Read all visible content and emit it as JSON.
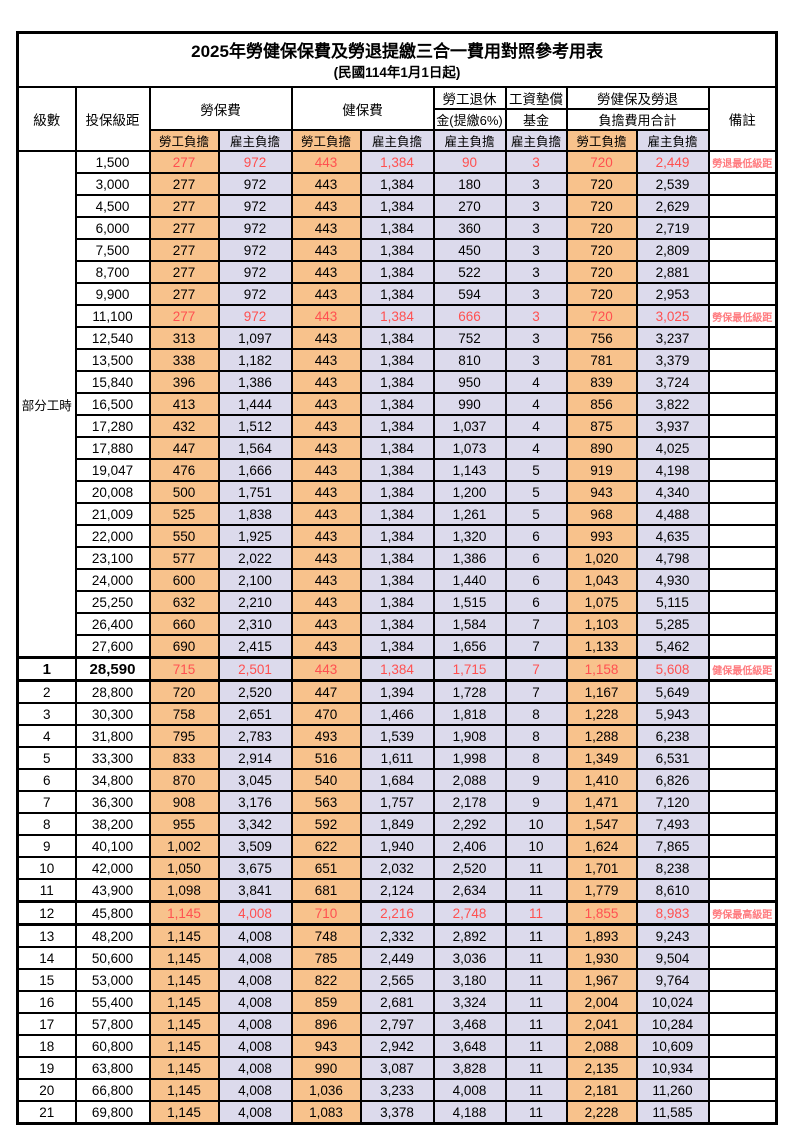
{
  "title": "2025年勞健保保費及勞退提繳三合一費用對照參考用表",
  "subtitle": "(民國114年1月1日起)",
  "header": {
    "level": "級數",
    "bracket": "投保級距",
    "labor_insurance": "勞保費",
    "health_insurance": "健保費",
    "pension_line1": "勞工退休",
    "pension_line2": "金(提繳6%)",
    "wage_fund_line1": "工資墊償",
    "wage_fund_line2": "基金",
    "total_line1": "勞健保及勞退",
    "total_line2": "負擔費用合計",
    "remark": "備註",
    "worker_share": "勞工負擔",
    "employer_share": "雇主負擔"
  },
  "part_time": {
    "label": "部分工時",
    "rowspan": 23
  },
  "colors": {
    "worker_bg": "#F8C28C",
    "employer_bg": "#DCDAEC",
    "red_value": "#FF5050",
    "remark_red": "#FF7C80",
    "border": "#000000"
  },
  "rows": [
    {
      "level": "",
      "bracket": "1,500",
      "v": [
        "277",
        "972",
        "443",
        "1,384",
        "90",
        "3",
        "720",
        "2,449"
      ],
      "remark": "勞退最低級距",
      "red": true,
      "thick": false,
      "em": false
    },
    {
      "level": "",
      "bracket": "3,000",
      "v": [
        "277",
        "972",
        "443",
        "1,384",
        "180",
        "3",
        "720",
        "2,539"
      ],
      "remark": "",
      "red": false,
      "thick": false,
      "em": false
    },
    {
      "level": "",
      "bracket": "4,500",
      "v": [
        "277",
        "972",
        "443",
        "1,384",
        "270",
        "3",
        "720",
        "2,629"
      ],
      "remark": "",
      "red": false,
      "thick": false,
      "em": false
    },
    {
      "level": "",
      "bracket": "6,000",
      "v": [
        "277",
        "972",
        "443",
        "1,384",
        "360",
        "3",
        "720",
        "2,719"
      ],
      "remark": "",
      "red": false,
      "thick": false,
      "em": false
    },
    {
      "level": "",
      "bracket": "7,500",
      "v": [
        "277",
        "972",
        "443",
        "1,384",
        "450",
        "3",
        "720",
        "2,809"
      ],
      "remark": "",
      "red": false,
      "thick": false,
      "em": false
    },
    {
      "level": "",
      "bracket": "8,700",
      "v": [
        "277",
        "972",
        "443",
        "1,384",
        "522",
        "3",
        "720",
        "2,881"
      ],
      "remark": "",
      "red": false,
      "thick": false,
      "em": false
    },
    {
      "level": "",
      "bracket": "9,900",
      "v": [
        "277",
        "972",
        "443",
        "1,384",
        "594",
        "3",
        "720",
        "2,953"
      ],
      "remark": "",
      "red": false,
      "thick": false,
      "em": false
    },
    {
      "level": "",
      "bracket": "11,100",
      "v": [
        "277",
        "972",
        "443",
        "1,384",
        "666",
        "3",
        "720",
        "3,025"
      ],
      "remark": "勞保最低級距",
      "red": true,
      "thick": false,
      "em": false
    },
    {
      "level": "",
      "bracket": "12,540",
      "v": [
        "313",
        "1,097",
        "443",
        "1,384",
        "752",
        "3",
        "756",
        "3,237"
      ],
      "remark": "",
      "red": false,
      "thick": false,
      "em": false
    },
    {
      "level": "",
      "bracket": "13,500",
      "v": [
        "338",
        "1,182",
        "443",
        "1,384",
        "810",
        "3",
        "781",
        "3,379"
      ],
      "remark": "",
      "red": false,
      "thick": false,
      "em": false
    },
    {
      "level": "",
      "bracket": "15,840",
      "v": [
        "396",
        "1,386",
        "443",
        "1,384",
        "950",
        "4",
        "839",
        "3,724"
      ],
      "remark": "",
      "red": false,
      "thick": false,
      "em": false
    },
    {
      "level": "",
      "bracket": "16,500",
      "v": [
        "413",
        "1,444",
        "443",
        "1,384",
        "990",
        "4",
        "856",
        "3,822"
      ],
      "remark": "",
      "red": false,
      "thick": false,
      "em": false
    },
    {
      "level": "",
      "bracket": "17,280",
      "v": [
        "432",
        "1,512",
        "443",
        "1,384",
        "1,037",
        "4",
        "875",
        "3,937"
      ],
      "remark": "",
      "red": false,
      "thick": false,
      "em": false
    },
    {
      "level": "",
      "bracket": "17,880",
      "v": [
        "447",
        "1,564",
        "443",
        "1,384",
        "1,073",
        "4",
        "890",
        "4,025"
      ],
      "remark": "",
      "red": false,
      "thick": false,
      "em": false
    },
    {
      "level": "",
      "bracket": "19,047",
      "v": [
        "476",
        "1,666",
        "443",
        "1,384",
        "1,143",
        "5",
        "919",
        "4,198"
      ],
      "remark": "",
      "red": false,
      "thick": false,
      "em": false
    },
    {
      "level": "",
      "bracket": "20,008",
      "v": [
        "500",
        "1,751",
        "443",
        "1,384",
        "1,200",
        "5",
        "943",
        "4,340"
      ],
      "remark": "",
      "red": false,
      "thick": false,
      "em": false
    },
    {
      "level": "",
      "bracket": "21,009",
      "v": [
        "525",
        "1,838",
        "443",
        "1,384",
        "1,261",
        "5",
        "968",
        "4,488"
      ],
      "remark": "",
      "red": false,
      "thick": false,
      "em": false
    },
    {
      "level": "",
      "bracket": "22,000",
      "v": [
        "550",
        "1,925",
        "443",
        "1,384",
        "1,320",
        "6",
        "993",
        "4,635"
      ],
      "remark": "",
      "red": false,
      "thick": false,
      "em": false
    },
    {
      "level": "",
      "bracket": "23,100",
      "v": [
        "577",
        "2,022",
        "443",
        "1,384",
        "1,386",
        "6",
        "1,020",
        "4,798"
      ],
      "remark": "",
      "red": false,
      "thick": false,
      "em": false
    },
    {
      "level": "",
      "bracket": "24,000",
      "v": [
        "600",
        "2,100",
        "443",
        "1,384",
        "1,440",
        "6",
        "1,043",
        "4,930"
      ],
      "remark": "",
      "red": false,
      "thick": false,
      "em": false
    },
    {
      "level": "",
      "bracket": "25,250",
      "v": [
        "632",
        "2,210",
        "443",
        "1,384",
        "1,515",
        "6",
        "1,075",
        "5,115"
      ],
      "remark": "",
      "red": false,
      "thick": false,
      "em": false
    },
    {
      "level": "",
      "bracket": "26,400",
      "v": [
        "660",
        "2,310",
        "443",
        "1,384",
        "1,584",
        "7",
        "1,103",
        "5,285"
      ],
      "remark": "",
      "red": false,
      "thick": false,
      "em": false
    },
    {
      "level": "",
      "bracket": "27,600",
      "v": [
        "690",
        "2,415",
        "443",
        "1,384",
        "1,656",
        "7",
        "1,133",
        "5,462"
      ],
      "remark": "",
      "red": false,
      "thick": false,
      "em": false
    },
    {
      "level": "1",
      "bracket": "28,590",
      "v": [
        "715",
        "2,501",
        "443",
        "1,384",
        "1,715",
        "7",
        "1,158",
        "5,608"
      ],
      "remark": "健保最低級距",
      "red": true,
      "thick": true,
      "em": true
    },
    {
      "level": "2",
      "bracket": "28,800",
      "v": [
        "720",
        "2,520",
        "447",
        "1,394",
        "1,728",
        "7",
        "1,167",
        "5,649"
      ],
      "remark": "",
      "red": false,
      "thick": false,
      "em": false
    },
    {
      "level": "3",
      "bracket": "30,300",
      "v": [
        "758",
        "2,651",
        "470",
        "1,466",
        "1,818",
        "8",
        "1,228",
        "5,943"
      ],
      "remark": "",
      "red": false,
      "thick": false,
      "em": false
    },
    {
      "level": "4",
      "bracket": "31,800",
      "v": [
        "795",
        "2,783",
        "493",
        "1,539",
        "1,908",
        "8",
        "1,288",
        "6,238"
      ],
      "remark": "",
      "red": false,
      "thick": false,
      "em": false
    },
    {
      "level": "5",
      "bracket": "33,300",
      "v": [
        "833",
        "2,914",
        "516",
        "1,611",
        "1,998",
        "8",
        "1,349",
        "6,531"
      ],
      "remark": "",
      "red": false,
      "thick": false,
      "em": false
    },
    {
      "level": "6",
      "bracket": "34,800",
      "v": [
        "870",
        "3,045",
        "540",
        "1,684",
        "2,088",
        "9",
        "1,410",
        "6,826"
      ],
      "remark": "",
      "red": false,
      "thick": false,
      "em": false
    },
    {
      "level": "7",
      "bracket": "36,300",
      "v": [
        "908",
        "3,176",
        "563",
        "1,757",
        "2,178",
        "9",
        "1,471",
        "7,120"
      ],
      "remark": "",
      "red": false,
      "thick": false,
      "em": false
    },
    {
      "level": "8",
      "bracket": "38,200",
      "v": [
        "955",
        "3,342",
        "592",
        "1,849",
        "2,292",
        "10",
        "1,547",
        "7,493"
      ],
      "remark": "",
      "red": false,
      "thick": false,
      "em": false
    },
    {
      "level": "9",
      "bracket": "40,100",
      "v": [
        "1,002",
        "3,509",
        "622",
        "1,940",
        "2,406",
        "10",
        "1,624",
        "7,865"
      ],
      "remark": "",
      "red": false,
      "thick": false,
      "em": false
    },
    {
      "level": "10",
      "bracket": "42,000",
      "v": [
        "1,050",
        "3,675",
        "651",
        "2,032",
        "2,520",
        "11",
        "1,701",
        "8,238"
      ],
      "remark": "",
      "red": false,
      "thick": false,
      "em": false
    },
    {
      "level": "11",
      "bracket": "43,900",
      "v": [
        "1,098",
        "3,841",
        "681",
        "2,124",
        "2,634",
        "11",
        "1,779",
        "8,610"
      ],
      "remark": "",
      "red": false,
      "thick": false,
      "em": false
    },
    {
      "level": "12",
      "bracket": "45,800",
      "v": [
        "1,145",
        "4,008",
        "710",
        "2,216",
        "2,748",
        "11",
        "1,855",
        "8,983"
      ],
      "remark": "勞保最高級距",
      "red": true,
      "thick": true,
      "em": false
    },
    {
      "level": "13",
      "bracket": "48,200",
      "v": [
        "1,145",
        "4,008",
        "748",
        "2,332",
        "2,892",
        "11",
        "1,893",
        "9,243"
      ],
      "remark": "",
      "red": false,
      "thick": false,
      "em": false
    },
    {
      "level": "14",
      "bracket": "50,600",
      "v": [
        "1,145",
        "4,008",
        "785",
        "2,449",
        "3,036",
        "11",
        "1,930",
        "9,504"
      ],
      "remark": "",
      "red": false,
      "thick": false,
      "em": false
    },
    {
      "level": "15",
      "bracket": "53,000",
      "v": [
        "1,145",
        "4,008",
        "822",
        "2,565",
        "3,180",
        "11",
        "1,967",
        "9,764"
      ],
      "remark": "",
      "red": false,
      "thick": false,
      "em": false
    },
    {
      "level": "16",
      "bracket": "55,400",
      "v": [
        "1,145",
        "4,008",
        "859",
        "2,681",
        "3,324",
        "11",
        "2,004",
        "10,024"
      ],
      "remark": "",
      "red": false,
      "thick": false,
      "em": false
    },
    {
      "level": "17",
      "bracket": "57,800",
      "v": [
        "1,145",
        "4,008",
        "896",
        "2,797",
        "3,468",
        "11",
        "2,041",
        "10,284"
      ],
      "remark": "",
      "red": false,
      "thick": false,
      "em": false
    },
    {
      "level": "18",
      "bracket": "60,800",
      "v": [
        "1,145",
        "4,008",
        "943",
        "2,942",
        "3,648",
        "11",
        "2,088",
        "10,609"
      ],
      "remark": "",
      "red": false,
      "thick": false,
      "em": false
    },
    {
      "level": "19",
      "bracket": "63,800",
      "v": [
        "1,145",
        "4,008",
        "990",
        "3,087",
        "3,828",
        "11",
        "2,135",
        "10,934"
      ],
      "remark": "",
      "red": false,
      "thick": false,
      "em": false
    },
    {
      "level": "20",
      "bracket": "66,800",
      "v": [
        "1,145",
        "4,008",
        "1,036",
        "3,233",
        "4,008",
        "11",
        "2,181",
        "11,260"
      ],
      "remark": "",
      "red": false,
      "thick": false,
      "em": false
    },
    {
      "level": "21",
      "bracket": "69,800",
      "v": [
        "1,145",
        "4,008",
        "1,083",
        "3,378",
        "4,188",
        "11",
        "2,228",
        "11,585"
      ],
      "remark": "",
      "red": false,
      "thick": false,
      "em": false
    }
  ]
}
